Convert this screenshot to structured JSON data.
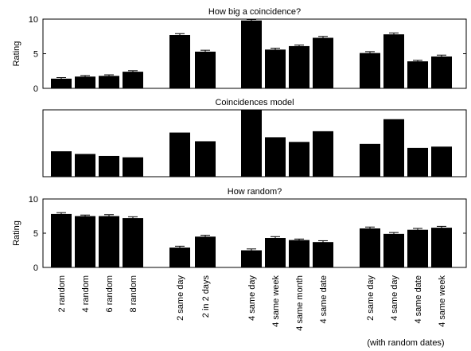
{
  "chart_data": [
    {
      "type": "bar",
      "title": "How big a coincidence?",
      "ylabel": "Rating",
      "ylim": [
        0,
        10
      ],
      "yticks": [
        0,
        5,
        10
      ],
      "error_bars": true,
      "groups": [
        {
          "categories": [
            "2 random",
            "4 random",
            "6 random",
            "8 random"
          ],
          "values": [
            1.4,
            1.7,
            1.8,
            2.4
          ],
          "errors": [
            0.15,
            0.15,
            0.15,
            0.15
          ]
        },
        {
          "categories": [
            "2 same day",
            "2 in 2 days"
          ],
          "values": [
            7.7,
            5.3
          ],
          "errors": [
            0.2,
            0.2
          ]
        },
        {
          "categories": [
            "4 same day",
            "4 same week",
            "4 same month",
            "4 same date"
          ],
          "values": [
            9.8,
            5.6,
            6.1,
            7.3
          ],
          "errors": [
            0.15,
            0.2,
            0.15,
            0.2
          ]
        },
        {
          "categories": [
            "2 same day",
            "4 same day",
            "4 same date",
            "4 same week"
          ],
          "values": [
            5.1,
            7.8,
            3.9,
            4.6
          ],
          "errors": [
            0.2,
            0.2,
            0.15,
            0.2
          ]
        }
      ]
    },
    {
      "type": "bar",
      "title": "Coincidences model",
      "ylabel": "",
      "ylim": [
        0,
        10
      ],
      "yticks": [],
      "error_bars": false,
      "groups": [
        {
          "categories": [
            "2 random",
            "4 random",
            "6 random",
            "8 random"
          ],
          "values": [
            3.8,
            3.4,
            3.1,
            2.9
          ]
        },
        {
          "categories": [
            "2 same day",
            "2 in 2 days"
          ],
          "values": [
            6.6,
            5.3
          ]
        },
        {
          "categories": [
            "4 same day",
            "4 same week",
            "4 same month",
            "4 same date"
          ],
          "values": [
            10.0,
            5.9,
            5.2,
            6.8
          ]
        },
        {
          "categories": [
            "2 same day",
            "4 same day",
            "4 same date",
            "4 same week"
          ],
          "values": [
            4.9,
            8.6,
            4.3,
            4.5
          ]
        }
      ]
    },
    {
      "type": "bar",
      "title": "How random?",
      "ylabel": "Rating",
      "ylim": [
        0,
        10
      ],
      "yticks": [
        0,
        5,
        10
      ],
      "error_bars": true,
      "groups": [
        {
          "categories": [
            "2 random",
            "4 random",
            "6 random",
            "8 random"
          ],
          "values": [
            7.8,
            7.5,
            7.5,
            7.2
          ],
          "errors": [
            0.2,
            0.15,
            0.2,
            0.2
          ]
        },
        {
          "categories": [
            "2 same day",
            "2 in 2 days"
          ],
          "values": [
            2.9,
            4.5
          ],
          "errors": [
            0.2,
            0.2
          ]
        },
        {
          "categories": [
            "4 same day",
            "4 same week",
            "4 same month",
            "4 same date"
          ],
          "values": [
            2.5,
            4.3,
            4.0,
            3.7
          ],
          "errors": [
            0.2,
            0.2,
            0.15,
            0.2
          ]
        },
        {
          "categories": [
            "2 same day",
            "4 same day",
            "4 same date",
            "4 same week"
          ],
          "values": [
            5.7,
            4.9,
            5.5,
            5.8
          ],
          "errors": [
            0.2,
            0.2,
            0.2,
            0.2
          ]
        }
      ]
    }
  ],
  "x_axis": {
    "group_note": "(with random dates)"
  },
  "colors": {
    "bar": "#000000",
    "axis": "#000000",
    "background": "#ffffff"
  }
}
